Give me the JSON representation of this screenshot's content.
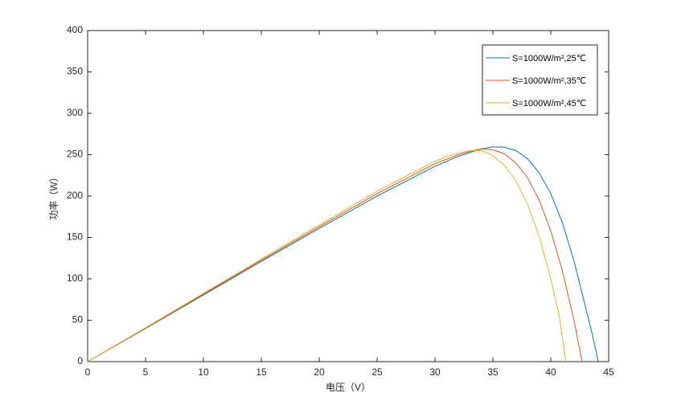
{
  "chart_data": {
    "type": "line",
    "xlabel": "电压（V）",
    "ylabel": "功率（W）",
    "xlim": [
      0,
      45
    ],
    "xticks": [
      0,
      5,
      10,
      15,
      20,
      25,
      30,
      35,
      40,
      45
    ],
    "ylim": [
      0,
      400
    ],
    "yticks": [
      0,
      50,
      100,
      150,
      200,
      250,
      300,
      350,
      400
    ],
    "grid": false,
    "legend": "upper right",
    "series": [
      {
        "name": "S=1000W/m²,25℃",
        "color": "#0072bd",
        "x": [
          0,
          5,
          10,
          15,
          20,
          25,
          30,
          32,
          34,
          35,
          36,
          37,
          38,
          39,
          40,
          41,
          42,
          43,
          43.6,
          44.1
        ],
        "values": [
          0,
          40,
          80.5,
          121,
          161,
          200,
          236,
          248,
          257,
          259.5,
          259,
          255,
          245,
          228,
          203,
          168,
          122,
          66,
          32,
          0
        ]
      },
      {
        "name": "S=1000W/m²,35℃",
        "color": "#d95319",
        "x": [
          0,
          5,
          10,
          15,
          20,
          25,
          30,
          32,
          33,
          34,
          35,
          36,
          37,
          38,
          39,
          40,
          41,
          42,
          42.7
        ],
        "values": [
          0,
          40.5,
          81.5,
          122.5,
          163,
          203,
          239,
          250,
          254,
          257,
          256,
          251,
          240,
          222,
          195,
          158,
          110,
          50,
          0
        ]
      },
      {
        "name": "S=1000W/m²,45℃",
        "color": "#edb120",
        "x": [
          0,
          5,
          10,
          15,
          20,
          25,
          30,
          31,
          32,
          33,
          34,
          35,
          36,
          37,
          38,
          39,
          40,
          40.7,
          41.3
        ],
        "values": [
          0,
          41,
          82.5,
          124,
          165,
          206,
          242,
          248,
          252,
          255,
          255,
          249,
          237,
          218,
          190,
          151,
          100,
          58,
          0
        ]
      }
    ]
  }
}
